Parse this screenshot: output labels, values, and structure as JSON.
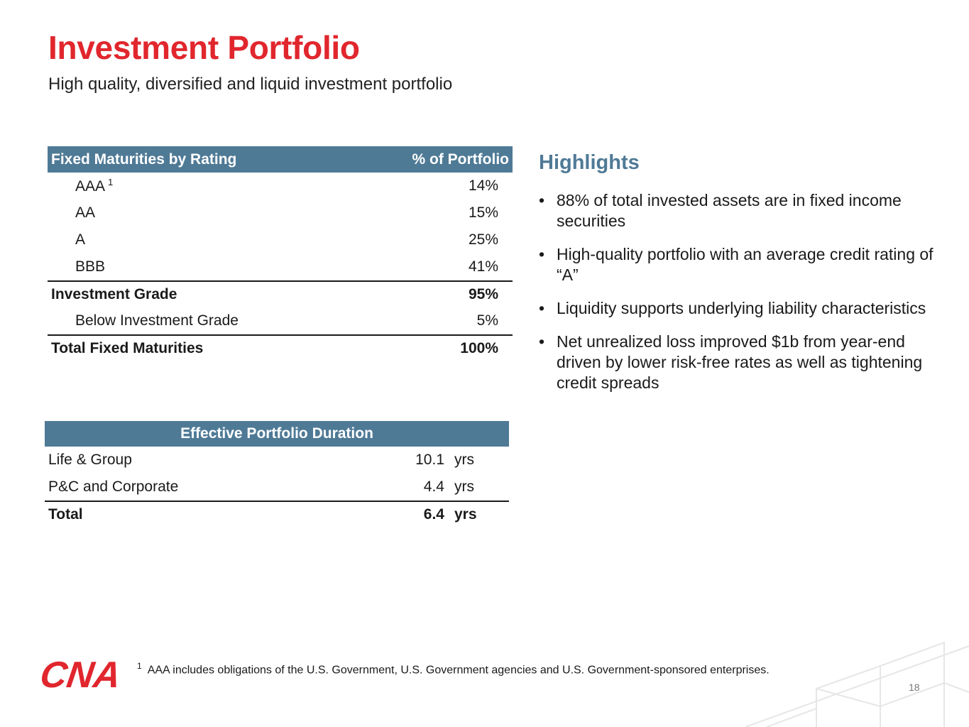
{
  "header": {
    "title": "Investment Portfolio",
    "subtitle": "High quality, diversified and liquid investment portfolio"
  },
  "rating_table": {
    "col_label": "Fixed Maturities by Rating",
    "col_value": "% of Portfolio",
    "rows": [
      {
        "label": "AAA",
        "footnote": "1",
        "value": "14%"
      },
      {
        "label": "AA",
        "value": "15%"
      },
      {
        "label": "A",
        "value": "25%"
      },
      {
        "label": "BBB",
        "value": "41%"
      },
      {
        "label": "Investment Grade",
        "value": "95%"
      },
      {
        "label": "Below Investment Grade",
        "value": "5%"
      },
      {
        "label": "Total Fixed Maturities",
        "value": "100%"
      }
    ]
  },
  "duration_table": {
    "header": "Effective Portfolio Duration",
    "rows": [
      {
        "label": "Life & Group",
        "value": "10.1",
        "unit": "yrs"
      },
      {
        "label": "P&C and Corporate",
        "value": "4.4",
        "unit": "yrs"
      },
      {
        "label": "Total",
        "value": "6.4",
        "unit": "yrs"
      }
    ]
  },
  "highlights": {
    "title": "Highlights",
    "bullet_char": "•",
    "items": [
      "88% of total invested assets are in fixed income securities",
      "High-quality portfolio with an average credit rating of “A”",
      "Liquidity supports underlying liability characteristics",
      "Net unrealized loss improved $1b from year-end driven by lower risk-free rates as well as tightening credit spreads"
    ]
  },
  "footer": {
    "logo_text": "CNA",
    "footnote_mark": "1",
    "footnote": "AAA includes obligations of the U.S. Government, U.S. Government agencies and U.S. Government-sponsored enterprises.",
    "page_number": "18"
  },
  "colors": {
    "title_red": "#e1262d",
    "table_header_blue": "#4f7a96"
  }
}
